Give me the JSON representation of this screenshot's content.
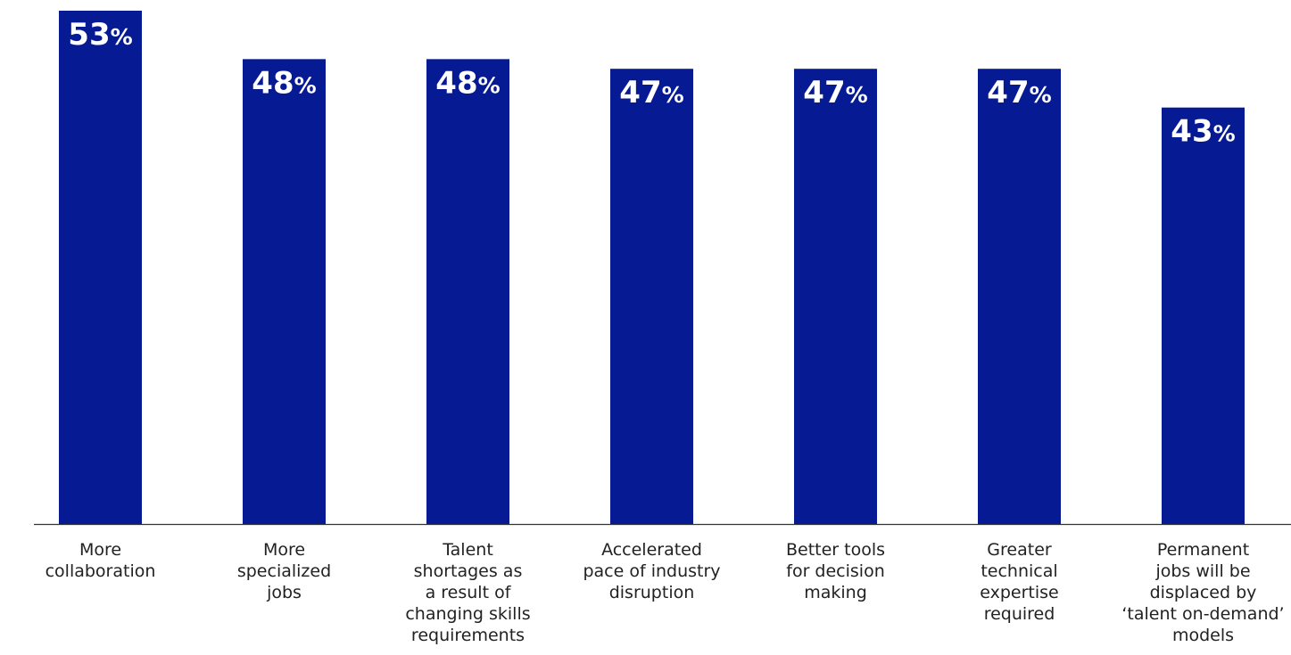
{
  "chart_data": {
    "type": "bar",
    "categories": [
      [
        "More",
        "collaboration"
      ],
      [
        "More",
        "specialized",
        "jobs"
      ],
      [
        "Talent",
        "shortages as",
        "a result of",
        "changing skills",
        "requirements"
      ],
      [
        "Accelerated",
        "pace of industry",
        "disruption"
      ],
      [
        "Better tools",
        "for decision",
        "making"
      ],
      [
        "Greater",
        "technical",
        "expertise",
        "required"
      ],
      [
        "Permanent",
        "jobs will be",
        "displaced by",
        "‘talent on-demand’",
        "models"
      ]
    ],
    "values": [
      53,
      48,
      48,
      47,
      47,
      47,
      43
    ],
    "value_labels": [
      "53",
      "48",
      "48",
      "47",
      "47",
      "47",
      "43"
    ],
    "value_suffix": "%",
    "ylim": [
      0,
      53
    ],
    "grid": false,
    "legend": "none",
    "colors": {
      "bar": "#061A94",
      "value_text": "#ffffff",
      "axis": "#333333",
      "label_text": "#222222"
    }
  }
}
